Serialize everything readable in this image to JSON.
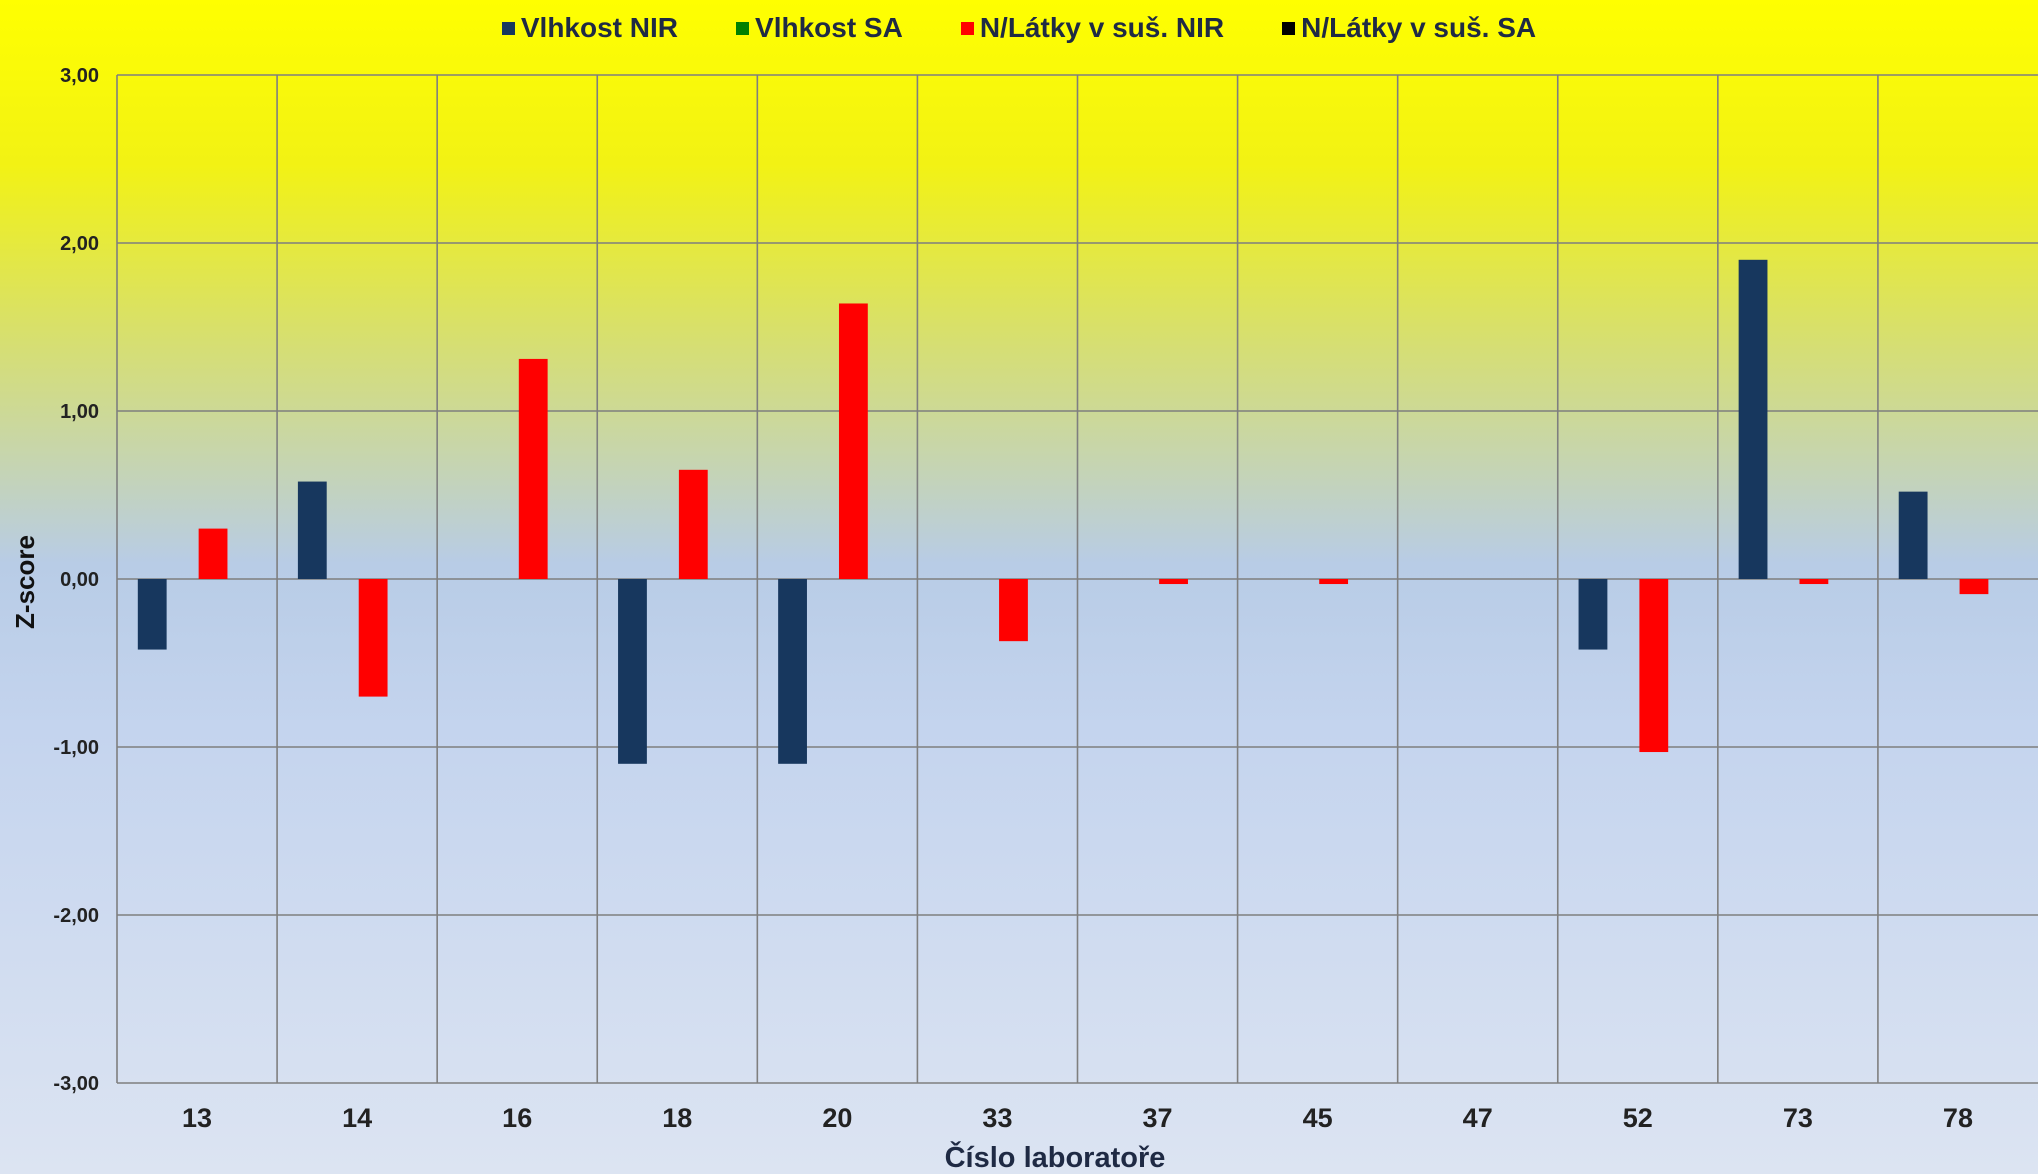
{
  "chart_data": {
    "type": "bar",
    "categories": [
      "13",
      "14",
      "16",
      "18",
      "20",
      "33",
      "37",
      "45",
      "47",
      "52",
      "73",
      "78"
    ],
    "series": [
      {
        "name": "Vlhkost NIR",
        "color": "#17375e",
        "values": [
          -0.42,
          0.58,
          0.0,
          -1.1,
          -1.1,
          0.0,
          0.0,
          0.0,
          0.0,
          -0.42,
          1.9,
          0.52
        ]
      },
      {
        "name": "Vlhkost SA",
        "color": "#008000",
        "values": [
          0,
          0,
          0,
          0,
          0,
          0,
          0,
          0,
          0,
          0,
          0,
          0
        ]
      },
      {
        "name": "N/Látky v suš. NIR",
        "color": "#ff0000",
        "values": [
          0.3,
          -0.7,
          1.31,
          0.65,
          1.64,
          -0.37,
          -0.03,
          -0.03,
          0.0,
          -1.03,
          -0.03,
          -0.09
        ]
      },
      {
        "name": "N/Látky v suš. SA",
        "color": "#000000",
        "values": [
          0,
          0,
          0,
          0,
          0,
          0,
          0,
          0,
          0,
          0,
          0,
          0
        ]
      }
    ],
    "ylim": [
      -3,
      3
    ],
    "yticks": [
      -3,
      -2,
      -1,
      0,
      1,
      2,
      3
    ],
    "ytick_labels": [
      "-3,00",
      "-2,00",
      "-1,00",
      "0,00",
      "1,00",
      "2,00",
      "3,00"
    ],
    "xlabel": "Číslo laboratoře",
    "ylabel": "Z-score",
    "legend_position": "top-center",
    "grid": true
  }
}
